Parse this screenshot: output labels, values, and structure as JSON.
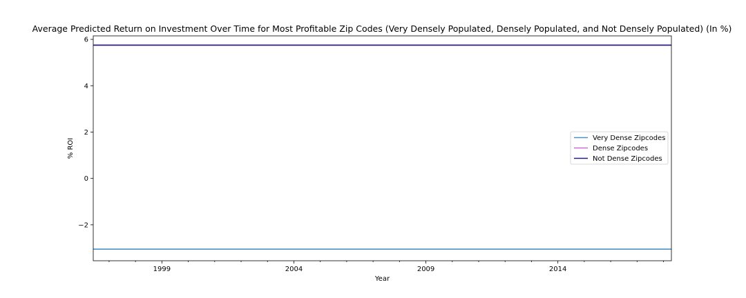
{
  "chart_data": {
    "type": "line",
    "title": "Average Predicted Return on Investment Over Time for Most Profitable Zip Codes (Very Densely Populated, Densely Populated, and Not Densely Populated) (In %)",
    "xlabel": "Year",
    "ylabel": "% ROI",
    "xlim": [
      1996.4,
      2018.3
    ],
    "ylim": [
      -3.55,
      6.15
    ],
    "x_ticks": [
      1999,
      2004,
      2009,
      2014
    ],
    "y_ticks": [
      -2,
      0,
      2,
      4,
      6
    ],
    "y_tick_labels": [
      "−2",
      "0",
      "2",
      "4",
      "6"
    ],
    "grid": false,
    "legend_position": "right",
    "series": [
      {
        "name": "Very Dense Zipcodes",
        "color": "#4a90c8",
        "x": [
          1996.4,
          2018.3
        ],
        "values": [
          -3.05,
          -3.05
        ]
      },
      {
        "name": "Dense Zipcodes",
        "color": "#c86dd7",
        "x": [
          1996.4,
          2018.3
        ],
        "values": [
          5.75,
          5.75
        ]
      },
      {
        "name": "Not Dense Zipcodes",
        "color": "#1f1f7a",
        "x": [
          1996.4,
          2018.3
        ],
        "values": [
          5.75,
          5.75
        ]
      }
    ]
  }
}
